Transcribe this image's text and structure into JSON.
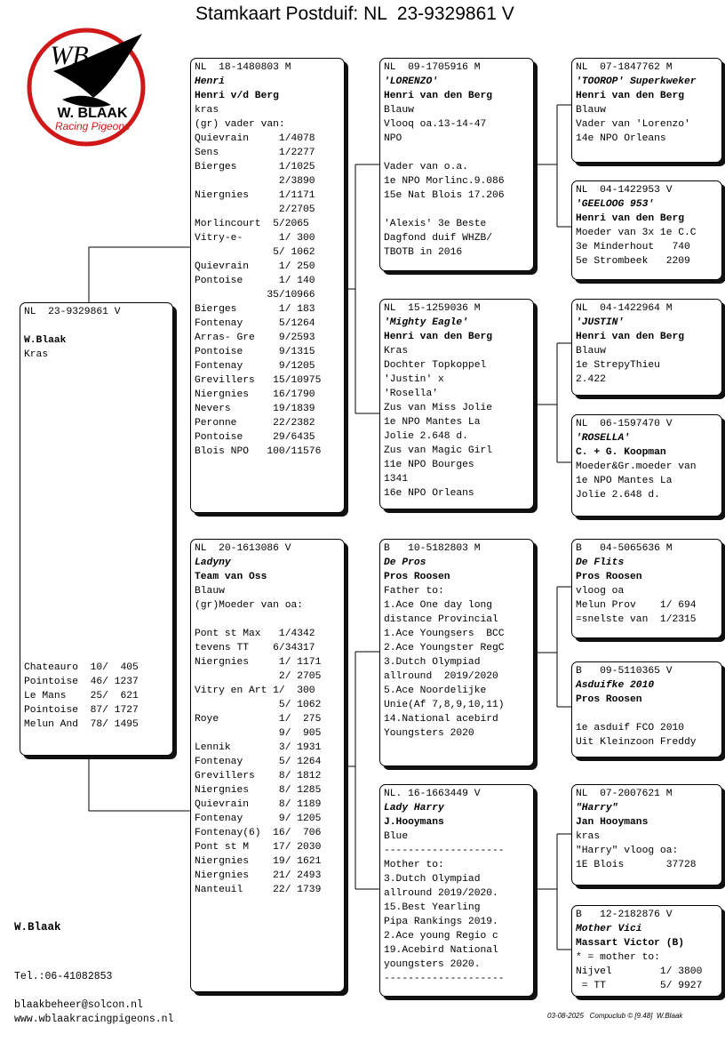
{
  "title": "Stamkaart Postduif: NL  23-9329861 V",
  "logo": {
    "initials": "WB",
    "name": "W. BLAAK",
    "tagline": "Racing Pigeons"
  },
  "boxes": [
    {
      "header": "NL  23-9329861 V",
      "breeder": "W.Blaak",
      "paragraphs": [
        [
          "Kras"
        ]
      ],
      "results": [
        "Chateauro  10/  405",
        "Pointoise  46/ 1237",
        "Le Mans    25/  621",
        "Pointoise  87/ 1727",
        "Melun And  78/ 1495"
      ]
    },
    {
      "header": "NL  18-1480803 M",
      "name": "Henri",
      "breeder": "Henri v/d Berg",
      "paragraphs": [
        [
          "kras",
          "(gr) vader van:",
          "Quievrain     1/4078",
          "Sens          1/2277",
          "Bierges       1/1025",
          "              2/3890",
          "Niergnies     1/1171",
          "              2/2705",
          "Morlincourt  5/2065",
          "Vitry-e-      1/ 300",
          "             5/ 1062",
          "Quievrain     1/ 250",
          "Pontoise      1/ 140",
          "            35/10966",
          "Bierges       1/ 183",
          "Fontenay      5/1264",
          "Arras- Gre    9/2593",
          "Pontoise      9/1315",
          "Fontenay      9/1205",
          "Grevillers   15/10975",
          "Niergnies    16/1790",
          "Nevers       19/1839",
          "Peronne      22/2382",
          "Pontoise     29/6435",
          "Blois NPO   100/11576"
        ]
      ]
    },
    {
      "header": "NL  20-1613086 V",
      "name": "Ladyny",
      "breeder": "Team van Oss",
      "paragraphs": [
        [
          "Blauw",
          "(gr)Moeder van oa:"
        ],
        [
          "Pont st Max   1/4342",
          "tevens TT    6/34317",
          "Niergnies     1/ 1171",
          "              2/ 2705",
          "Vitry en Art 1/  300",
          "              5/ 1062",
          "Roye          1/  275",
          "              9/  905",
          "Lennik        3/ 1931",
          "Fontenay      5/ 1264",
          "Grevillers    8/ 1812",
          "Niergnies     8/ 1285",
          "Quievrain     8/ 1189",
          "Fontenay      9/ 1205",
          "Fontenay(6)  16/  706",
          "Pont st M    17/ 2030",
          "Niergnies    19/ 1621",
          "Niergnies    21/ 2493",
          "Nanteuil     22/ 1739"
        ]
      ]
    },
    {
      "header": "NL  09-1705916 M",
      "name": "'LORENZO'",
      "breeder": "Henri van den Berg",
      "paragraphs": [
        [
          "Blauw",
          "Vlooq oa.13-14-47",
          "NPO"
        ],
        [
          "Vader van o.a.",
          "1e NPO Morlinc.9.086",
          "15e Nat Blois 17.206"
        ],
        [
          "'Alexis' 3e Beste",
          "Dagfond duif WHZB/",
          "TBOTB in 2016"
        ]
      ]
    },
    {
      "header": "NL  15-1259036 M",
      "name": "'Mighty Eagle'",
      "breeder": "Henri van den Berg",
      "paragraphs": [
        [
          "Kras",
          "Dochter Topkoppel",
          "'Justin' x",
          "'Rosella'",
          "Zus van Miss Jolie",
          "1e NPO Mantes La",
          "Jolie 2.648 d.",
          "Zus van Magic Girl",
          "11e NPO Bourges",
          "1341",
          "16e NPO Orleans"
        ]
      ]
    },
    {
      "header": "B   10-5182803 M",
      "name": "De Pros",
      "breeder": "Pros Roosen",
      "paragraphs": [
        [
          "Father to:",
          "1.Ace One day long",
          "distance Provincial",
          "1.Ace Youngsers  BCC",
          "2.Ace Youngster RegC",
          "3.Dutch Olympiad",
          "allround  2019/2020",
          "5.Ace Noordelijke",
          "Unie(Af 7,8,9,10,11)",
          "14.National acebird",
          "Youngsters 2020"
        ]
      ]
    },
    {
      "header": "NL. 16-1663449 V",
      "name": "Lady Harry",
      "breeder": "J.Hooymans",
      "paragraphs": [
        [
          "Blue",
          "--------------------",
          "Mother to:",
          "3.Dutch Olympiad",
          "allround 2019/2020.",
          "15.Best Yearling",
          "Pipa Rankings 2019.",
          "2.Ace young Regio c",
          "19.Acebird National",
          "youngsters 2020.",
          "--------------------"
        ]
      ]
    },
    {
      "header": "NL  07-1847762 M",
      "name": "'TOOROP' Superkweker",
      "breeder": "Henri van den Berg",
      "paragraphs": [
        [
          "Blauw",
          "Vader van 'Lorenzo'",
          "14e NPO Orleans"
        ]
      ]
    },
    {
      "header": "NL  04-1422953 V",
      "name": "'GEELOOG 953'",
      "breeder": "Henri van den Berg",
      "paragraphs": [
        [
          "Moeder van 3x 1e C.C",
          "3e Minderhout   740",
          "5e Strombeek   2209"
        ]
      ]
    },
    {
      "header": "NL  04-1422964 M",
      "name": "'JUSTIN'",
      "breeder": "Henri van den Berg",
      "paragraphs": [
        [
          "Blauw",
          "1e StrepyThieu",
          "2.422"
        ]
      ]
    },
    {
      "header": "NL  06-1597470 V",
      "name": "'ROSELLA'",
      "breeder": "C. + G. Koopman",
      "paragraphs": [
        [
          "Moeder&Gr.moeder van",
          "1e NPO Mantes La",
          "Jolie 2.648 d."
        ]
      ]
    },
    {
      "header": "B   04-5065636 M",
      "name": "De Flits",
      "breeder": "Pros Roosen",
      "paragraphs": [
        [
          "vloog oa",
          "Melun Prov    1/ 694",
          "=snelste van  1/2315"
        ]
      ]
    },
    {
      "header": "B   09-5110365 V",
      "name": "Asduifke 2010",
      "breeder": "Pros Roosen",
      "paragraphs": [
        [],
        [
          "1e asduif FCO 2010",
          "Uit Kleinzoon Freddy"
        ]
      ]
    },
    {
      "header": "NL  07-2007621 M",
      "name": "\"Harry\"",
      "breeder": "Jan Hooymans",
      "paragraphs": [
        [
          "kras",
          "\"Harry\" vloog oa:",
          "1E Blois       37728"
        ]
      ]
    },
    {
      "header": "B   12-2182876 V",
      "name": "Mother Vici",
      "breeder": "Massart Victor (B)",
      "paragraphs": [
        [
          "* = mother to:",
          "Nijvel        1/ 3800",
          " = TT         5/ 9927"
        ]
      ]
    }
  ],
  "footer": {
    "owner": "W.Blaak",
    "phone": "Tel.:06-41082853",
    "email": "blaakbeheer@solcon.nl",
    "website": "www.wblaakracingpigeons.nl",
    "imprint": "03-08-2025   Compuclub © [9.48]  W.Blaak"
  }
}
